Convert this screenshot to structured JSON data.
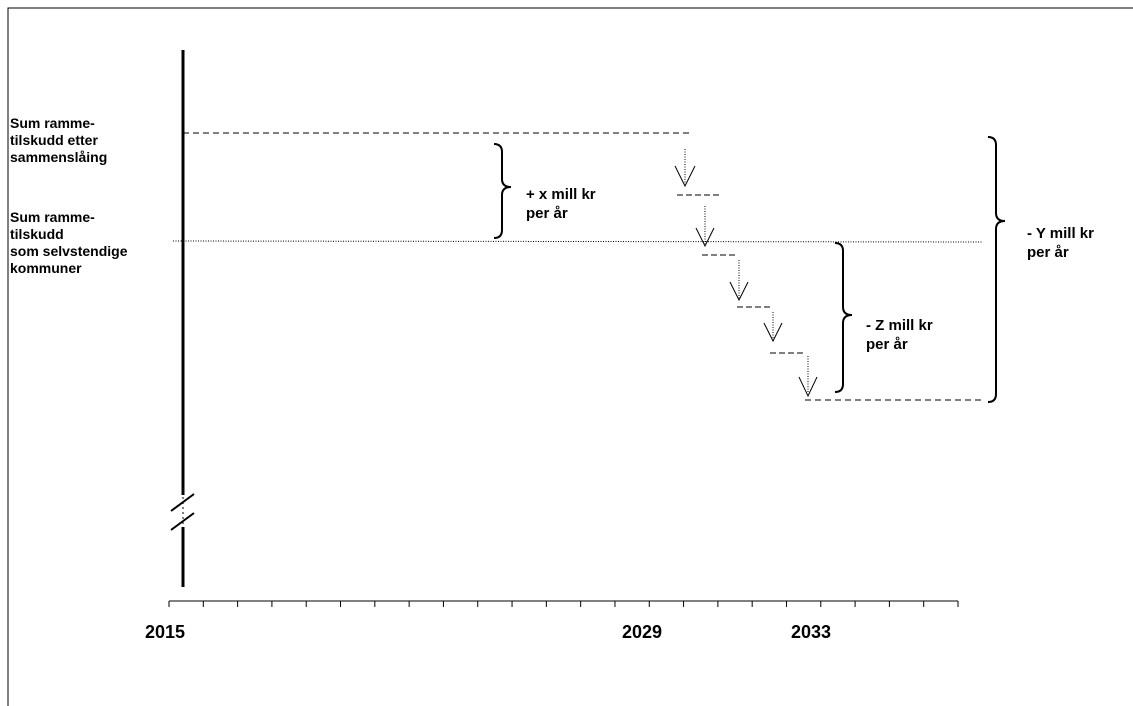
{
  "labels": {
    "after_merger": [
      "Sum ramme-",
      "tilskudd etter",
      "sammenslåing"
    ],
    "independent": [
      "Sum ramme-",
      "tilskudd",
      "som selvstendige",
      "kommuner"
    ]
  },
  "braces": {
    "x": [
      "+ x mill kr",
      "per år"
    ],
    "z": [
      "- Z mill kr",
      "per år"
    ],
    "y": [
      "- Y mill kr",
      "per år"
    ]
  },
  "axis": {
    "tick_count": 24,
    "year_labels": [
      "2015",
      "2029",
      "2033"
    ]
  }
}
